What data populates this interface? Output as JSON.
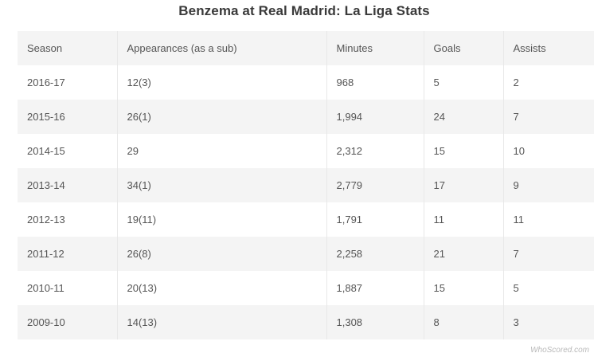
{
  "chart_data": {
    "type": "table",
    "title": "Benzema at Real Madrid: La Liga Stats",
    "columns": [
      "Season",
      "Appearances (as a sub)",
      "Minutes",
      "Goals",
      "Assists"
    ],
    "rows": [
      [
        "2016-17",
        "12(3)",
        "968",
        "5",
        "2"
      ],
      [
        "2015-16",
        "26(1)",
        "1,994",
        "24",
        "7"
      ],
      [
        "2014-15",
        "29",
        "2,312",
        "15",
        "10"
      ],
      [
        "2013-14",
        "34(1)",
        "2,779",
        "17",
        "9"
      ],
      [
        "2012-13",
        "19(11)",
        "1,791",
        "11",
        "11"
      ],
      [
        "2011-12",
        "26(8)",
        "2,258",
        "21",
        "7"
      ],
      [
        "2010-11",
        "20(13)",
        "1,887",
        "15",
        "5"
      ],
      [
        "2009-10",
        "14(13)",
        "1,308",
        "8",
        "3"
      ]
    ]
  },
  "watermark": "WhoScored.com"
}
